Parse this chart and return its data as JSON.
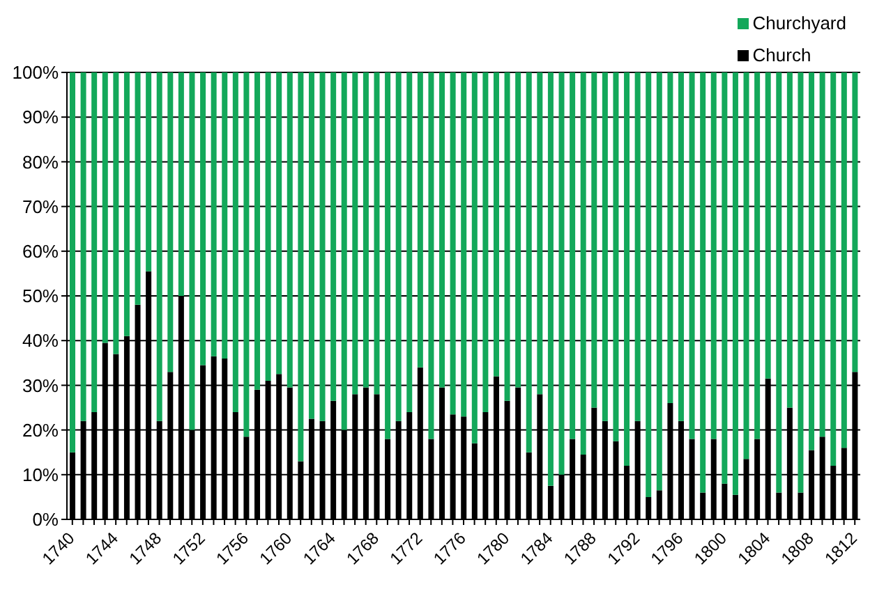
{
  "chart_data": {
    "type": "bar",
    "stacked": true,
    "categories": [
      "1740",
      null,
      null,
      null,
      "1744",
      null,
      null,
      null,
      "1748",
      null,
      null,
      null,
      "1752",
      null,
      null,
      null,
      "1756",
      null,
      null,
      null,
      "1760",
      null,
      null,
      null,
      "1764",
      null,
      null,
      null,
      "1768",
      null,
      null,
      null,
      "1772",
      null,
      null,
      null,
      "1776",
      null,
      null,
      null,
      "1780",
      null,
      null,
      null,
      "1784",
      null,
      null,
      null,
      "1788",
      null,
      null,
      null,
      "1792",
      null,
      null,
      null,
      "1796",
      null,
      null,
      null,
      "1800",
      null,
      null,
      null,
      "1804",
      null,
      null,
      null,
      "1808",
      null,
      null,
      null,
      "1812"
    ],
    "series": [
      {
        "name": "Church",
        "color": "#000000",
        "values": [
          15,
          22,
          24,
          39.5,
          37,
          41,
          48,
          55.5,
          22,
          33,
          50,
          20,
          34.5,
          36.5,
          36,
          24,
          18.5,
          29,
          31,
          32.5,
          29.5,
          13,
          22.5,
          22,
          26.5,
          20,
          28,
          29.5,
          28,
          18,
          22,
          24,
          34,
          18,
          29.5,
          23.5,
          23,
          17,
          24,
          32,
          26.5,
          29.5,
          15,
          28,
          7.5,
          10,
          18,
          14.5,
          25,
          22,
          17.5,
          12,
          22,
          5,
          6.5,
          26,
          22,
          18,
          6,
          18,
          8,
          5.5,
          13.5,
          18,
          31.5,
          6,
          25,
          6,
          15.5,
          18.5,
          12,
          16,
          33
        ]
      },
      {
        "name": "Churchyard",
        "color": "#13a85a",
        "values": [
          85,
          78,
          76,
          60.5,
          63,
          59,
          52,
          44.5,
          78,
          67,
          50,
          80,
          65.5,
          63.5,
          64,
          76,
          81.5,
          71,
          69,
          67.5,
          70.5,
          87,
          77.5,
          78,
          73.5,
          80,
          72,
          70.5,
          72,
          82,
          78,
          76,
          66,
          82,
          70.5,
          76.5,
          77,
          83,
          76,
          68,
          73.5,
          70.5,
          85,
          72,
          92.5,
          90,
          82,
          85.5,
          75,
          78,
          82.5,
          88,
          78,
          95,
          93.5,
          74,
          78,
          82,
          94,
          82,
          92,
          94.5,
          86.5,
          82,
          68.5,
          94,
          75,
          94,
          84.5,
          81.5,
          88,
          84,
          67
        ]
      }
    ],
    "ylim": [
      0,
      100
    ],
    "yticks": [
      {
        "value": 0,
        "label": "0%"
      },
      {
        "value": 10,
        "label": "10%"
      },
      {
        "value": 20,
        "label": "20%"
      },
      {
        "value": 30,
        "label": "30%"
      },
      {
        "value": 40,
        "label": "40%"
      },
      {
        "value": 50,
        "label": "50%"
      },
      {
        "value": 60,
        "label": "60%"
      },
      {
        "value": 70,
        "label": "70%"
      },
      {
        "value": 80,
        "label": "80%"
      },
      {
        "value": 90,
        "label": "90%"
      },
      {
        "value": 100,
        "label": "100%"
      }
    ],
    "grid": "y",
    "legend": "top right"
  }
}
